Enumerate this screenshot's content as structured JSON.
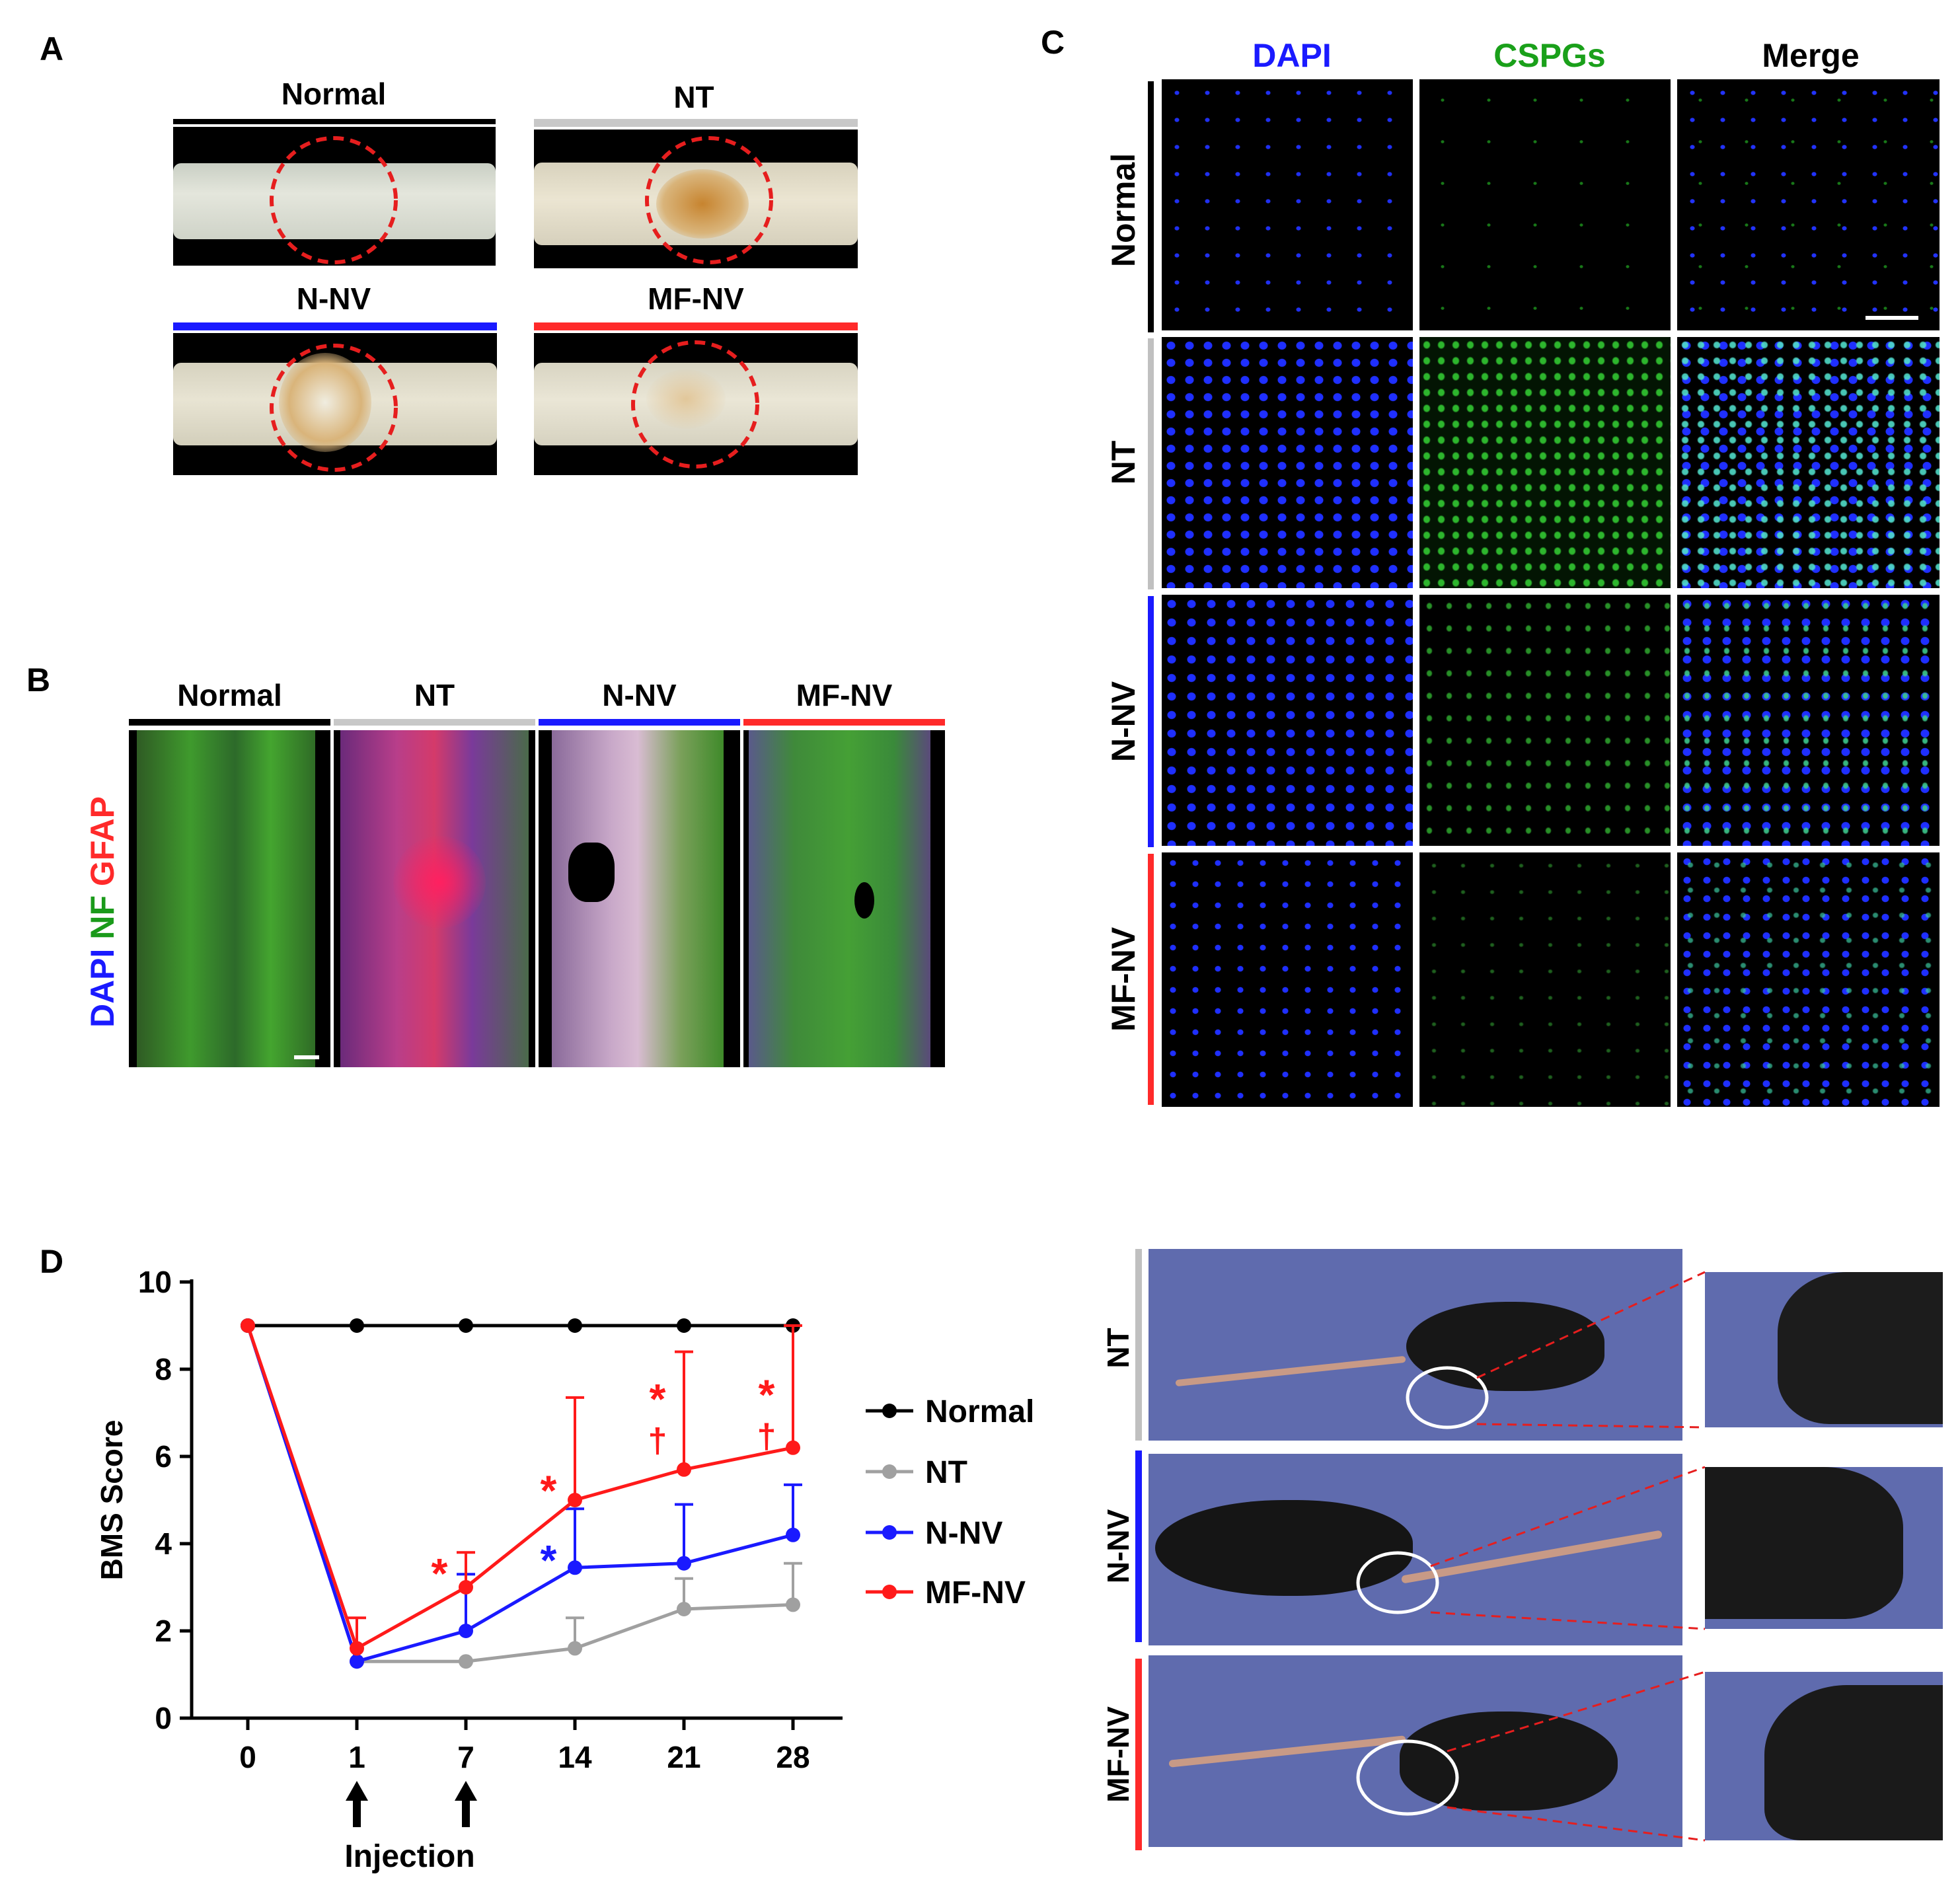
{
  "panel_letters": {
    "a": "A",
    "b": "B",
    "c": "C",
    "d": "D"
  },
  "panel_a": {
    "groups": [
      {
        "name": "Normal",
        "color": "#000000"
      },
      {
        "name": "NT",
        "color": "#bdbdbd"
      },
      {
        "name": "N-NV",
        "color": "#1a1aff"
      },
      {
        "name": "MF-NV",
        "color": "#ff2a2a"
      }
    ],
    "circle_color": "#e61e1e"
  },
  "panel_b": {
    "groups": [
      "Normal",
      "NT",
      "N-NV",
      "MF-NV"
    ],
    "stain_labels": {
      "dapi": "DAPI",
      "nf": "NF",
      "gfap": "GFAP"
    },
    "stain_colors": {
      "dapi": "#1a1aff",
      "nf": "#1a9a1a",
      "gfap": "#ff2a2a"
    }
  },
  "panel_c": {
    "columns": [
      "DAPI",
      "CSPGs",
      "Merge"
    ],
    "column_colors": [
      "#1a1aff",
      "#1aa01a",
      "#000000"
    ],
    "rows": [
      "Normal",
      "NT",
      "N-NV",
      "MF-NV"
    ]
  },
  "panel_d_photos": {
    "rows": [
      "NT",
      "N-NV",
      "MF-NV"
    ],
    "background": "#5f6bae"
  },
  "chart_data": {
    "type": "line",
    "ylabel": "BMS Score",
    "xlabel": "",
    "x": [
      "0",
      "1",
      "7",
      "14",
      "21",
      "28"
    ],
    "ylim": [
      0,
      10
    ],
    "yticks": [
      0,
      2,
      4,
      6,
      8,
      10
    ],
    "series": [
      {
        "name": "Normal",
        "color": "#000000",
        "values": [
          9,
          9,
          9,
          9,
          9,
          9
        ],
        "err": [
          0,
          0,
          0,
          0,
          0,
          0
        ]
      },
      {
        "name": "NT",
        "color": "#a0a0a0",
        "values": [
          9,
          1.3,
          1.3,
          1.6,
          2.5,
          2.6
        ],
        "err": [
          0,
          0,
          0,
          0.7,
          0.7,
          0.95
        ]
      },
      {
        "name": "N-NV",
        "color": "#1a1aff",
        "values": [
          9,
          1.3,
          2.0,
          3.45,
          3.55,
          4.2
        ],
        "err": [
          0,
          0,
          1.3,
          1.35,
          1.35,
          1.15
        ]
      },
      {
        "name": "MF-NV",
        "color": "#ff1a1a",
        "values": [
          9,
          1.6,
          3.0,
          5.0,
          5.7,
          6.2
        ],
        "err": [
          0,
          0.7,
          0.8,
          2.35,
          2.7,
          2.8
        ]
      }
    ],
    "annotations": [
      {
        "text": "*",
        "x": "7",
        "y": 3.5,
        "color": "#ff1a1a"
      },
      {
        "text": "*",
        "x": "14",
        "y": 3.8,
        "color": "#1a1aff"
      },
      {
        "text": "*",
        "x": "14",
        "y": 5.4,
        "color": "#ff1a1a"
      },
      {
        "text": "*",
        "x": "21",
        "y": 7.5,
        "color": "#ff1a1a"
      },
      {
        "text": "†",
        "x": "21",
        "y": 6.4,
        "color": "#ff1a1a"
      },
      {
        "text": "*",
        "x": "28",
        "y": 7.6,
        "color": "#ff1a1a"
      },
      {
        "text": "†",
        "x": "28",
        "y": 6.5,
        "color": "#ff1a1a"
      }
    ],
    "injection_label": "Injection",
    "injection_days": [
      "1",
      "7"
    ],
    "legend": "right"
  }
}
